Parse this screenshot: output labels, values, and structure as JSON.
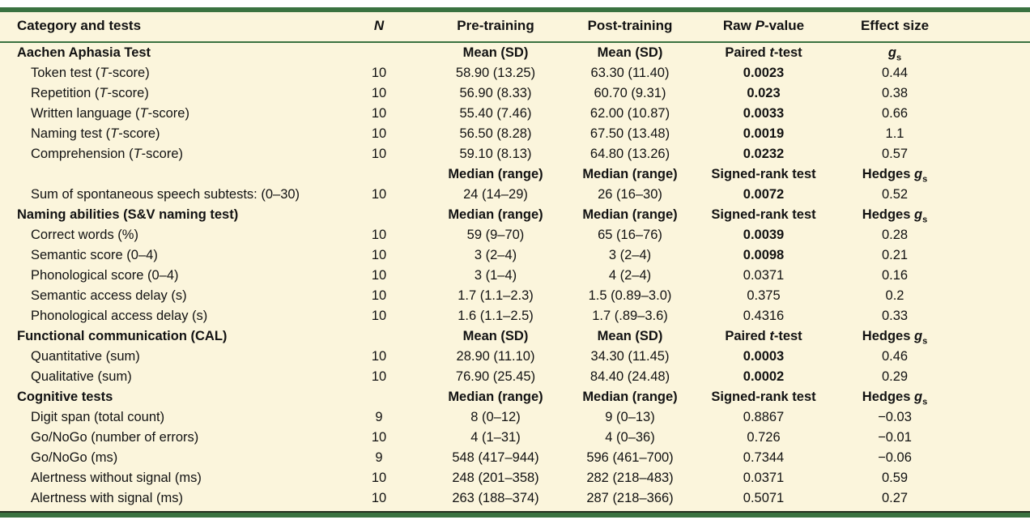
{
  "colors": {
    "panel_bg": "#fbf5dc",
    "rule_green": "#3a7240",
    "text": "#121212"
  },
  "header": {
    "columns": [
      {
        "id": "category",
        "label": "Category and tests"
      },
      {
        "id": "n",
        "label": "*N*"
      },
      {
        "id": "pre",
        "label": "Pre-training"
      },
      {
        "id": "post",
        "label": "Post-training"
      },
      {
        "id": "p",
        "label": "Raw *P*-value"
      },
      {
        "id": "effect",
        "label": "Effect size"
      }
    ]
  },
  "rows": [
    {
      "type": "section",
      "category": "Aachen Aphasia Test",
      "n": "",
      "pre": "Mean (SD)",
      "post": "Mean (SD)",
      "p": "Paired *t*-test",
      "p_strong": false,
      "effect": "*g*~s~"
    },
    {
      "type": "data",
      "category": "Token test (*T*-score)",
      "n": "10",
      "pre": "58.90 (13.25)",
      "post": "63.30 (11.40)",
      "p": "0.0023",
      "p_strong": true,
      "effect": "0.44"
    },
    {
      "type": "data",
      "category": "Repetition (*T*-score)",
      "n": "10",
      "pre": "56.90 (8.33)",
      "post": "60.70 (9.31)",
      "p": "0.023",
      "p_strong": true,
      "effect": "0.38"
    },
    {
      "type": "data",
      "category": "Written language (*T*-score)",
      "n": "10",
      "pre": "55.40 (7.46)",
      "post": "62.00 (10.87)",
      "p": "0.0033",
      "p_strong": true,
      "effect": "0.66"
    },
    {
      "type": "data",
      "category": "Naming test (*T*-score)",
      "n": "10",
      "pre": "56.50 (8.28)",
      "post": "67.50 (13.48)",
      "p": "0.0019",
      "p_strong": true,
      "effect": "1.1"
    },
    {
      "type": "data",
      "category": "Comprehension (*T*-score)",
      "n": "10",
      "pre": "59.10 (8.13)",
      "post": "64.80 (13.26)",
      "p": "0.0232",
      "p_strong": true,
      "effect": "0.57"
    },
    {
      "type": "subheader",
      "category": "",
      "n": "",
      "pre": "Median (range)",
      "post": "Median (range)",
      "p": "Signed-rank test",
      "p_strong": false,
      "effect": "Hedges *g*~s~"
    },
    {
      "type": "data",
      "category": "Sum of spontaneous speech subtests: (0–30)",
      "n": "10",
      "pre": "24 (14–29)",
      "post": "26 (16–30)",
      "p": "0.0072",
      "p_strong": true,
      "effect": "0.52"
    },
    {
      "type": "section",
      "category": "Naming abilities (S&V naming test)",
      "n": "",
      "pre": "Median (range)",
      "post": "Median (range)",
      "p": "Signed-rank test",
      "p_strong": false,
      "effect": "Hedges *g*~s~"
    },
    {
      "type": "data",
      "category": "Correct words (%)",
      "n": "10",
      "pre": "59 (9–70)",
      "post": "65 (16–76)",
      "p": "0.0039",
      "p_strong": true,
      "effect": "0.28"
    },
    {
      "type": "data",
      "category": "Semantic score (0–4)",
      "n": "10",
      "pre": "3 (2–4)",
      "post": "3 (2–4)",
      "p": "0.0098",
      "p_strong": true,
      "effect": "0.21"
    },
    {
      "type": "data",
      "category": "Phonological score (0–4)",
      "n": "10",
      "pre": "3 (1–4)",
      "post": "4 (2–4)",
      "p": "0.0371",
      "p_strong": false,
      "effect": "0.16"
    },
    {
      "type": "data",
      "category": "Semantic access delay (s)",
      "n": "10",
      "pre": "1.7 (1.1–2.3)",
      "post": "1.5 (0.89–3.0)",
      "p": "0.375",
      "p_strong": false,
      "effect": "0.2"
    },
    {
      "type": "data",
      "category": "Phonological access delay (s)",
      "n": "10",
      "pre": "1.6 (1.1–2.5)",
      "post": "1.7 (.89–3.6)",
      "p": "0.4316",
      "p_strong": false,
      "effect": "0.33"
    },
    {
      "type": "section",
      "category": "Functional communication (CAL)",
      "n": "",
      "pre": "Mean (SD)",
      "post": "Mean (SD)",
      "p": "Paired *t*-test",
      "p_strong": false,
      "effect": "Hedges *g*~s~"
    },
    {
      "type": "data",
      "category": "Quantitative (sum)",
      "n": "10",
      "pre": "28.90 (11.10)",
      "post": "34.30 (11.45)",
      "p": "0.0003",
      "p_strong": true,
      "effect": "0.46"
    },
    {
      "type": "data",
      "category": "Qualitative (sum)",
      "n": "10",
      "pre": "76.90 (25.45)",
      "post": "84.40 (24.48)",
      "p": "0.0002",
      "p_strong": true,
      "effect": "0.29"
    },
    {
      "type": "section",
      "category": "Cognitive tests",
      "n": "",
      "pre": "Median (range)",
      "post": "Median (range)",
      "p": "Signed-rank test",
      "p_strong": false,
      "effect": "Hedges *g*~s~"
    },
    {
      "type": "data",
      "category": "Digit span (total count)",
      "n": "9",
      "pre": "8 (0–12)",
      "post": "9 (0–13)",
      "p": "0.8867",
      "p_strong": false,
      "effect": "−0.03"
    },
    {
      "type": "data",
      "category": "Go/NoGo (number of errors)",
      "n": "10",
      "pre": "4 (1–31)",
      "post": "4 (0–36)",
      "p": "0.726",
      "p_strong": false,
      "effect": "−0.01"
    },
    {
      "type": "data",
      "category": "Go/NoGo (ms)",
      "n": "9",
      "pre": "548 (417–944)",
      "post": "596 (461–700)",
      "p": "0.7344",
      "p_strong": false,
      "effect": "−0.06"
    },
    {
      "type": "data",
      "category": "Alertness without signal (ms)",
      "n": "10",
      "pre": "248 (201–358)",
      "post": "282 (218–483)",
      "p": "0.0371",
      "p_strong": false,
      "effect": "0.59"
    },
    {
      "type": "data",
      "category": "Alertness with signal (ms)",
      "n": "10",
      "pre": "263 (188–374)",
      "post": "287 (218–366)",
      "p": "0.5071",
      "p_strong": false,
      "effect": "0.27"
    }
  ]
}
